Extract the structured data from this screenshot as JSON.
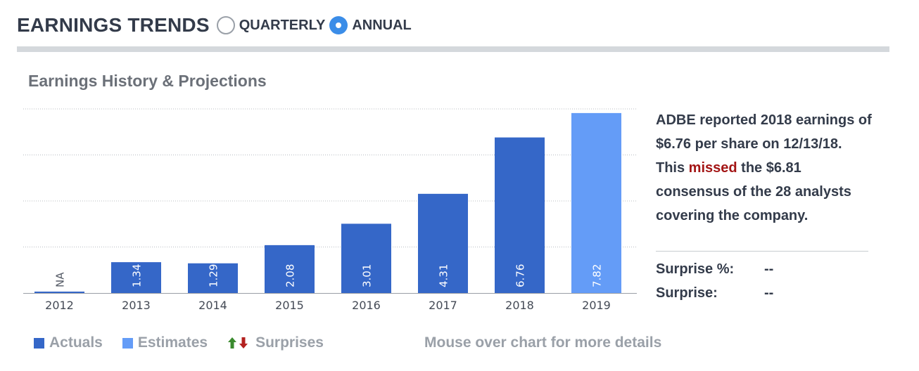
{
  "header": {
    "title": "EARNINGS TRENDS",
    "options": [
      {
        "label": "QUARTERLY",
        "selected": false
      },
      {
        "label": "ANNUAL",
        "selected": true
      }
    ]
  },
  "colors": {
    "actuals": "#3567c8",
    "estimates": "#649cf7",
    "missed": "#a31515",
    "up_arrow": "#3a8a2e",
    "down_arrow": "#b3211f"
  },
  "chart_data": {
    "type": "bar",
    "title": "Earnings History & Projections",
    "categories": [
      "2012",
      "2013",
      "2014",
      "2015",
      "2016",
      "2017",
      "2018",
      "2019"
    ],
    "series": [
      {
        "name": "Actuals",
        "values": [
          null,
          1.34,
          1.29,
          2.08,
          3.01,
          4.31,
          6.76,
          null
        ]
      },
      {
        "name": "Estimates",
        "values": [
          null,
          null,
          null,
          null,
          null,
          null,
          null,
          7.82
        ]
      }
    ],
    "data_labels": [
      "NA",
      "1.34",
      "1.29",
      "2.08",
      "3.01",
      "4.31",
      "6.76",
      "7.82"
    ],
    "ylim": [
      0,
      8
    ],
    "grid": true
  },
  "summary": {
    "before": "ADBE reported 2018 earnings of $6.76 per share on 12/13/18. This ",
    "missed": "missed",
    "after": " the $6.81 consensus of the 28 analysts covering the company."
  },
  "stats": [
    {
      "label": "Surprise %:",
      "value": "--"
    },
    {
      "label": "Surprise:",
      "value": "--"
    }
  ],
  "legend": {
    "actuals": "Actuals",
    "estimates": "Estimates",
    "surprises": "Surprises"
  },
  "hint": "Mouse over chart for more details"
}
